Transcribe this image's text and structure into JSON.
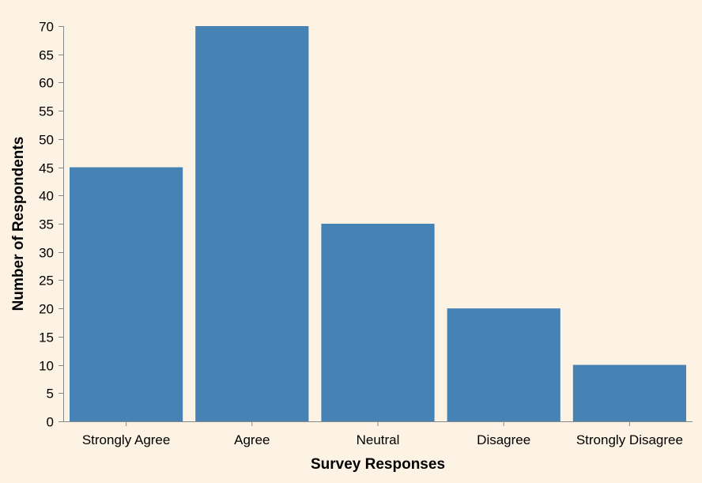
{
  "chart_data": {
    "type": "bar",
    "categories": [
      "Strongly Agree",
      "Agree",
      "Neutral",
      "Disagree",
      "Strongly Disagree"
    ],
    "values": [
      45,
      70,
      35,
      20,
      10
    ],
    "xlabel": "Survey Responses",
    "ylabel": "Number of Respondents",
    "ylim": [
      0,
      70
    ],
    "yticks": [
      0,
      5,
      10,
      15,
      20,
      25,
      30,
      35,
      40,
      45,
      50,
      55,
      60,
      65,
      70
    ],
    "grid": false,
    "bar_color": "#4682b4",
    "background_color": "#fdf3e4"
  }
}
